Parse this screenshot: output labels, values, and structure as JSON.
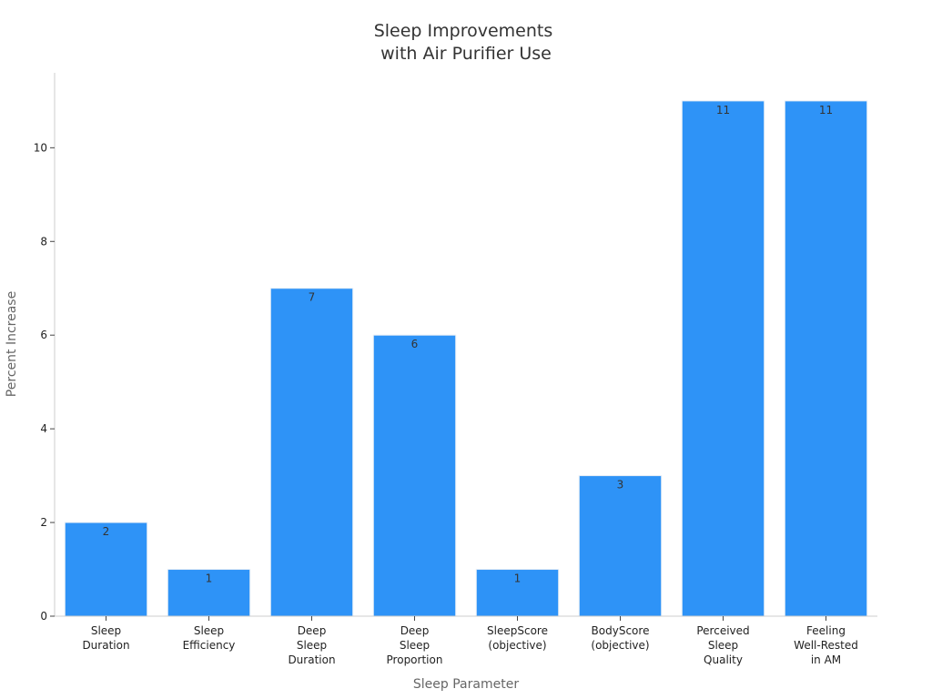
{
  "chart_data": {
    "type": "bar",
    "title": [
      "Sleep Improvements",
      "with Air Purifier Use"
    ],
    "xlabel": "Sleep Parameter",
    "ylabel": "Percent Increase",
    "categories": [
      [
        "Sleep",
        "Duration"
      ],
      [
        "Sleep",
        "Efficiency"
      ],
      [
        "Deep",
        "Sleep",
        "Duration"
      ],
      [
        "Deep",
        "Sleep",
        "Proportion"
      ],
      [
        "SleepScore",
        "(objective)"
      ],
      [
        "BodyScore",
        "(objective)"
      ],
      [
        "Perceived",
        "Sleep",
        "Quality"
      ],
      [
        "Feeling",
        "Well-Rested",
        "in AM"
      ]
    ],
    "values": [
      2,
      1,
      7,
      6,
      1,
      3,
      11,
      11
    ],
    "ylim": [
      0,
      11.6
    ],
    "yticks": [
      0,
      2,
      4,
      6,
      8,
      10
    ],
    "grid": false,
    "legend": "none",
    "bar_color": "#2e93f7"
  }
}
